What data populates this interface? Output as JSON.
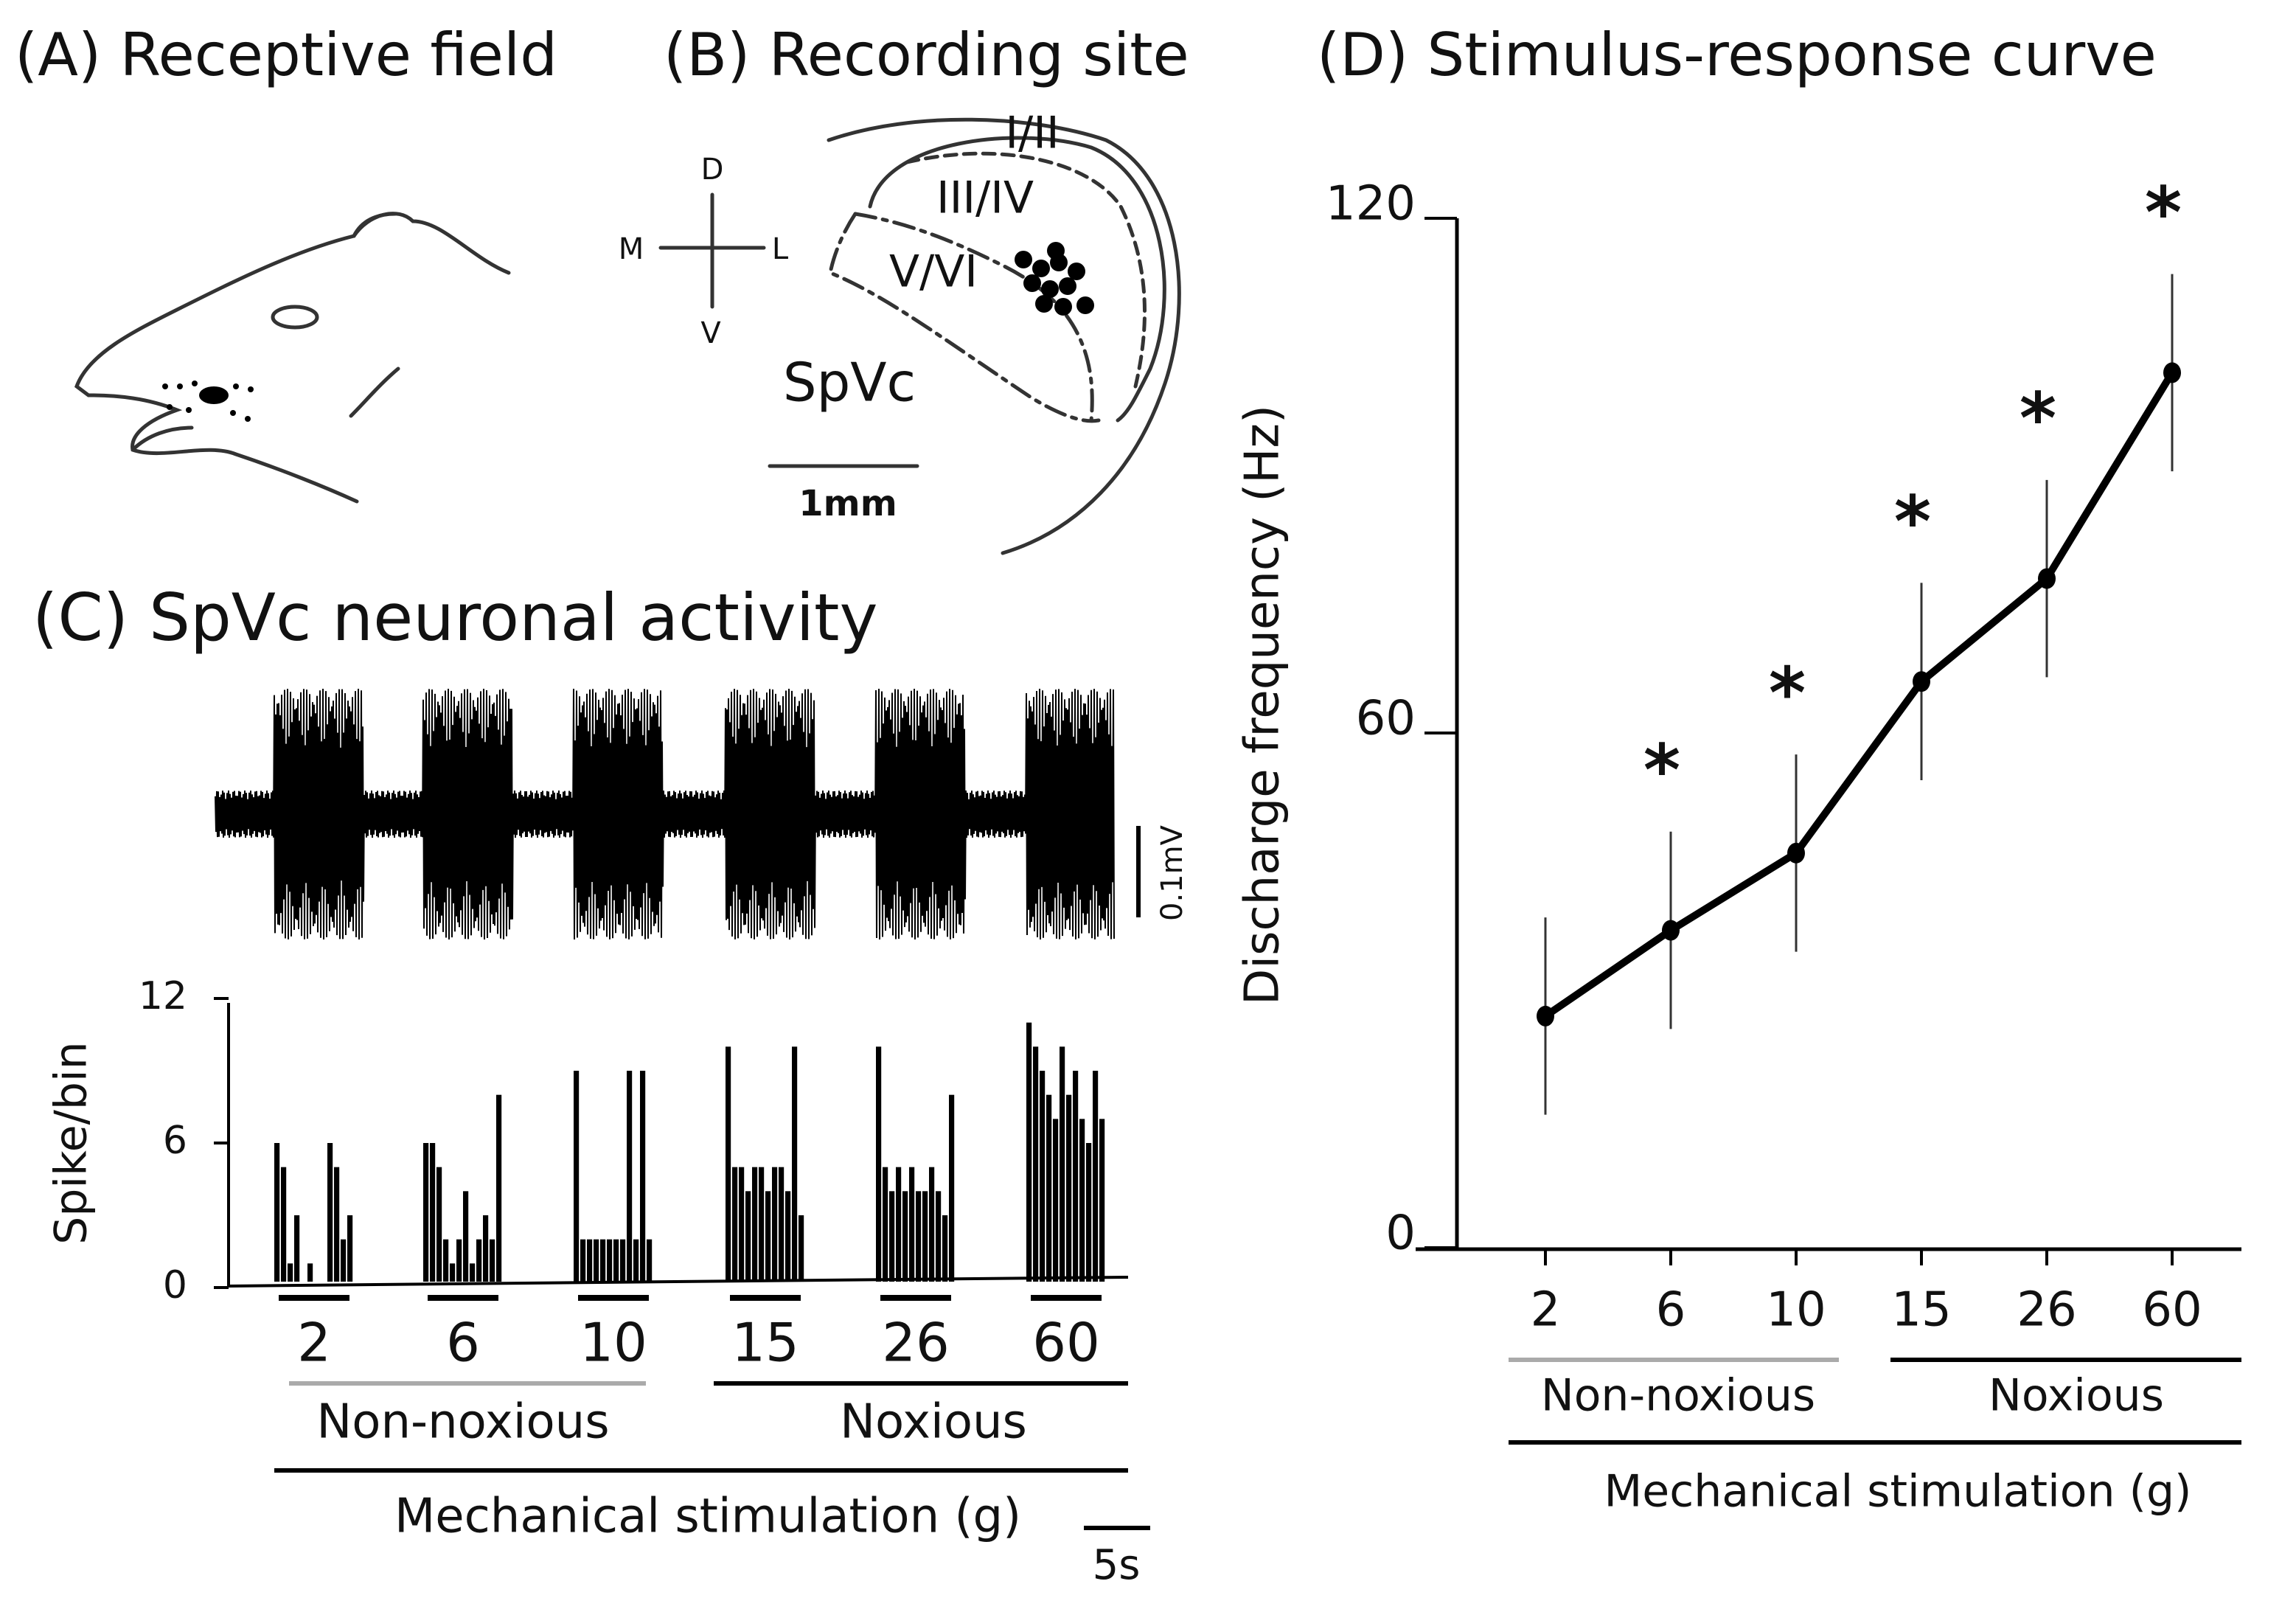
{
  "panel_a": {
    "title": "(A) Receptive field"
  },
  "panel_b": {
    "title": "(B) Recording site",
    "orientation": {
      "d": "D",
      "m": "M",
      "l": "L",
      "v": "V"
    },
    "layers": [
      "I/II",
      "III/IV",
      "V/VI"
    ],
    "region": "SpVc",
    "scale_bar": "1mm"
  },
  "chart_data": [
    {
      "type": "histogram-groups",
      "title": "(C) SpVc neuronal activity",
      "y_label": "Spike/bin",
      "categories": [
        "2",
        "6",
        "10",
        "15",
        "26",
        "60"
      ],
      "values": [
        [
          6,
          5,
          1,
          3,
          0,
          1,
          0,
          0,
          6,
          5,
          2,
          3
        ],
        [
          6,
          6,
          5,
          2,
          1,
          2,
          4,
          1,
          2,
          3,
          2,
          8
        ],
        [
          9,
          2,
          2,
          2,
          2,
          2,
          2,
          2,
          9,
          2,
          9,
          2
        ],
        [
          10,
          5,
          5,
          4,
          5,
          5,
          4,
          5,
          5,
          4,
          10,
          3
        ],
        [
          10,
          5,
          4,
          5,
          4,
          5,
          4,
          4,
          5,
          4,
          3,
          8
        ],
        [
          11,
          10,
          9,
          8,
          7,
          10,
          8,
          9,
          7,
          6,
          9,
          7
        ]
      ],
      "color": "#000000",
      "ylim": [
        0,
        12
      ],
      "yticks": [
        0,
        6,
        12
      ],
      "group_labels": [
        "Non-noxious",
        "Noxious"
      ],
      "x_label": "Mechanical stimulation (g)",
      "scale_bars": {
        "voltage": "0.1mV",
        "time": "5s"
      }
    },
    {
      "type": "line",
      "title": "(D) Stimulus-response curve",
      "y_label": "Discharge frequency (Hz)",
      "categories": [
        "2",
        "6",
        "10",
        "15",
        "26",
        "60"
      ],
      "values": [
        27,
        37,
        46,
        66,
        78,
        102
      ],
      "errors": [
        11.5,
        11.5,
        11.5,
        11.5,
        11.5,
        11.5
      ],
      "annotations": [
        null,
        "*",
        "*",
        "*",
        "*",
        "*"
      ],
      "color": "#000000",
      "ylim": [
        0,
        120
      ],
      "yticks": [
        0,
        60,
        120
      ],
      "group_labels": [
        "Non-noxious",
        "Noxious"
      ],
      "x_label": "Mechanical stimulation  (g)"
    }
  ]
}
